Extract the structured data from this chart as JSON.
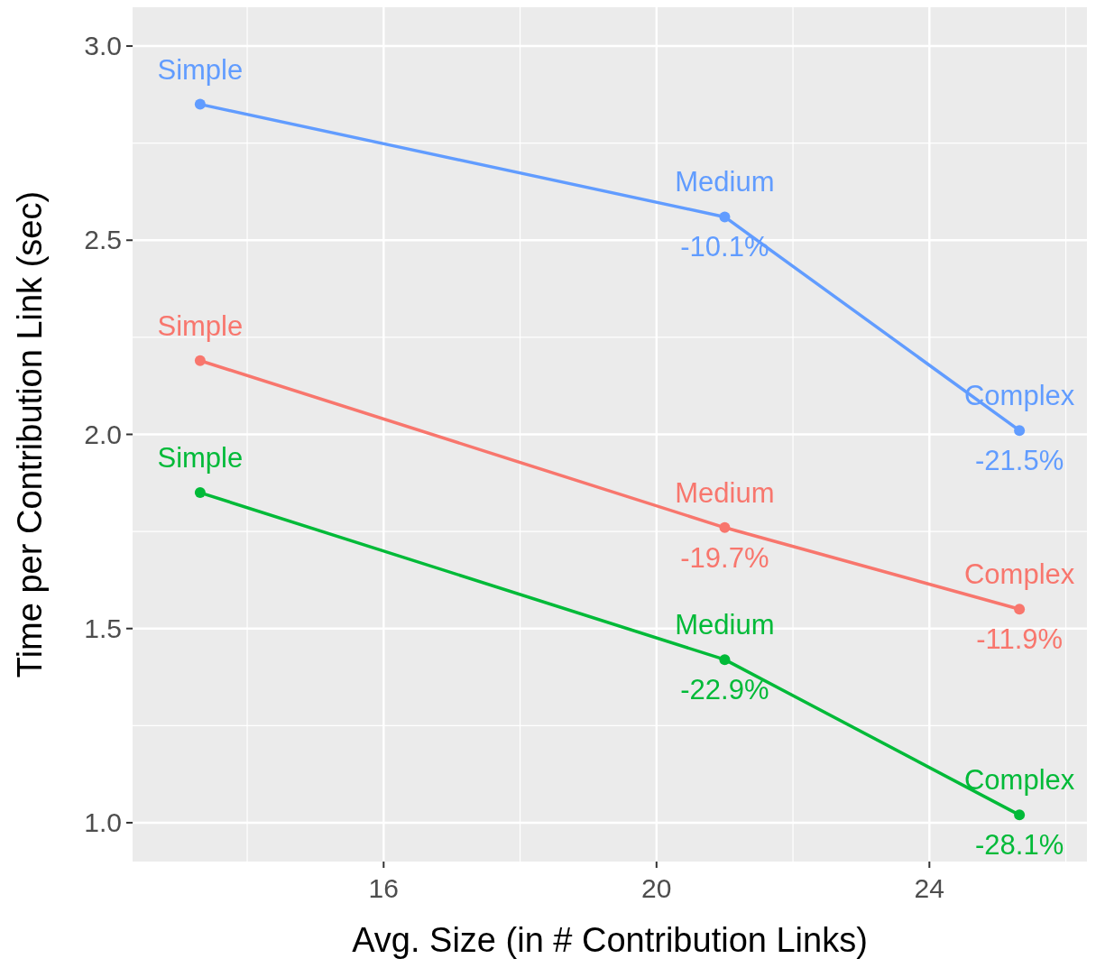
{
  "chart_data": {
    "type": "line",
    "xlabel": "Avg. Size (in # Contribution Links)",
    "ylabel": "Time per Contribution Link (sec)",
    "x": [
      13.31,
      21.0,
      25.32
    ],
    "series": [
      {
        "color": "#619cff",
        "values": [
          2.85,
          2.56,
          2.01
        ]
      },
      {
        "color": "#f8766d",
        "values": [
          2.19,
          1.76,
          1.55
        ]
      },
      {
        "color": "#00ba38",
        "values": [
          1.85,
          1.42,
          1.02
        ]
      }
    ],
    "annotations": [
      {
        "text": "Simple",
        "x": 13.31,
        "y": 2.85
      },
      {
        "text": "Medium",
        "x": 21.0,
        "y": 2.56
      },
      {
        "text": "-10.1%",
        "x": 21.0,
        "y": 2.56
      },
      {
        "text": "Complex",
        "x": 25.32,
        "y": 2.01
      },
      {
        "text": "-21.5%",
        "x": 25.32,
        "y": 2.01
      },
      {
        "text": "Simple",
        "x": 13.31,
        "y": 2.19
      },
      {
        "text": "Medium",
        "x": 21.0,
        "y": 1.76
      },
      {
        "text": "-19.7%",
        "x": 21.0,
        "y": 1.76
      },
      {
        "text": "Complex",
        "x": 25.32,
        "y": 1.55
      },
      {
        "text": "-11.9%",
        "x": 25.32,
        "y": 1.55
      },
      {
        "text": "Simple",
        "x": 13.31,
        "y": 1.85
      },
      {
        "text": "Medium",
        "x": 21.0,
        "y": 1.42
      },
      {
        "text": "-22.9%",
        "x": 21.0,
        "y": 1.42
      },
      {
        "text": "Complex",
        "x": 25.32,
        "y": 1.02
      },
      {
        "text": "-28.1%",
        "x": 25.32,
        "y": 1.02
      }
    ],
    "xlim": [
      12.32,
      26.31
    ],
    "ylim": [
      0.9,
      3.1
    ],
    "xticks": [
      16,
      20,
      24
    ],
    "yticks": [
      {
        "value": 1,
        "label": "1.0"
      },
      1.5,
      {
        "value": 2,
        "label": "2.0"
      },
      2.5,
      {
        "value": 3,
        "label": "3.0"
      }
    ],
    "grid": true,
    "marker": "circle"
  }
}
